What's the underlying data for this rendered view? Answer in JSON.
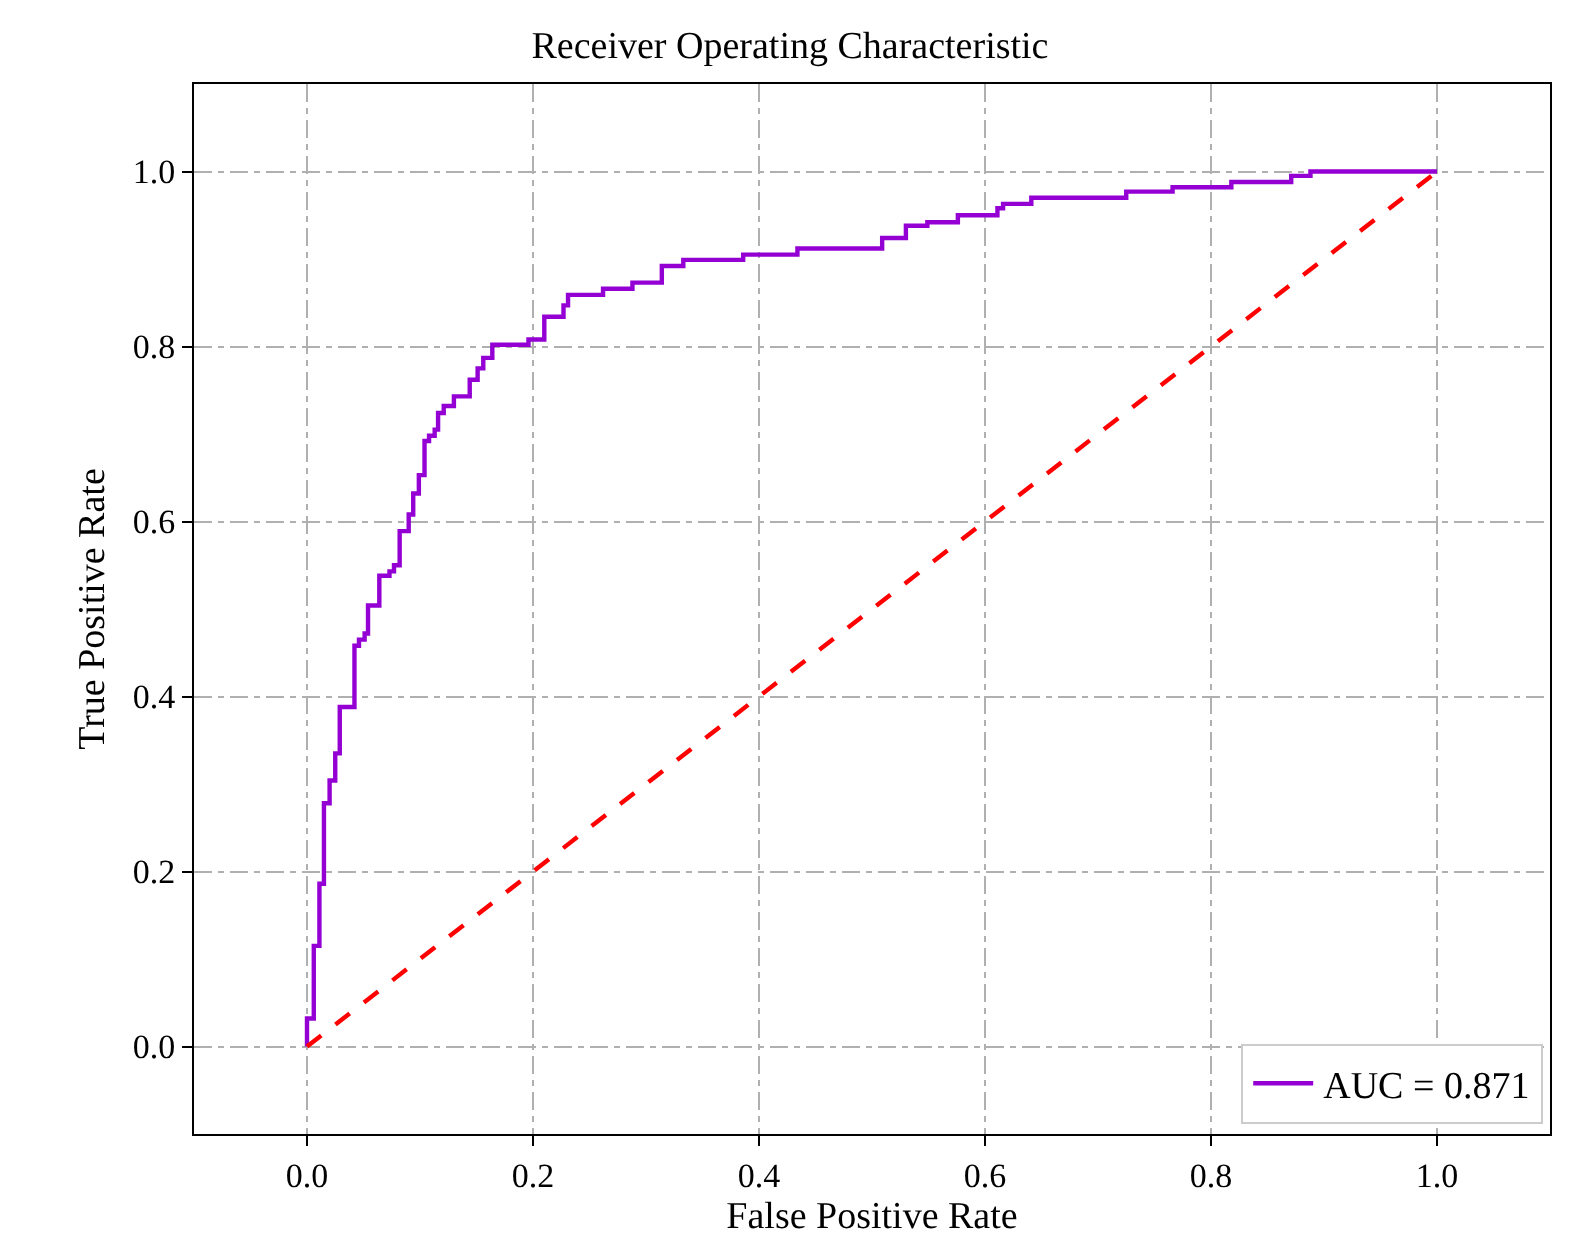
{
  "chart_data": {
    "type": "line",
    "title": "Receiver Operating Characteristic",
    "xlabel": "False Positive Rate",
    "ylabel": "True Positive Rate",
    "xlim": [
      -0.1,
      1.1
    ],
    "ylim": [
      -0.1,
      1.1
    ],
    "xticks": [
      {
        "value": 0,
        "label": "0.0"
      },
      0.2,
      0.4,
      0.6,
      0.8,
      {
        "value": 1,
        "label": "1.0"
      }
    ],
    "yticks": [
      {
        "value": 0,
        "label": "0.0"
      },
      0.2,
      0.4,
      0.6,
      0.8,
      {
        "value": 1,
        "label": "1.0"
      }
    ],
    "grid": true,
    "legend": "bottom right",
    "series": [
      {
        "name": "AUC = 0.871",
        "color": "#9400d3",
        "line_style": "solid",
        "x": [
          0,
          0,
          0.006,
          0.006,
          0.011,
          0.011,
          0.015,
          0.015,
          0.02,
          0.02,
          0.025,
          0.025,
          0.029,
          0.029,
          0.042,
          0.042,
          0.046,
          0.046,
          0.051,
          0.051,
          0.054,
          0.054,
          0.064,
          0.064,
          0.073,
          0.073,
          0.077,
          0.077,
          0.082,
          0.082,
          0.09,
          0.09,
          0.094,
          0.094,
          0.099,
          0.099,
          0.104,
          0.104,
          0.108,
          0.108,
          0.113,
          0.113,
          0.116,
          0.116,
          0.121,
          0.121,
          0.13,
          0.13,
          0.144,
          0.144,
          0.151,
          0.151,
          0.156,
          0.156,
          0.164,
          0.164,
          0.196,
          0.196,
          0.21,
          0.21,
          0.227,
          0.227,
          0.231,
          0.231,
          0.262,
          0.262,
          0.288,
          0.288,
          0.314,
          0.314,
          0.333,
          0.333,
          0.386,
          0.386,
          0.434,
          0.434,
          0.509,
          0.509,
          0.53,
          0.53,
          0.549,
          0.549,
          0.576,
          0.576,
          0.611,
          0.611,
          0.616,
          0.616,
          0.641,
          0.641,
          0.725,
          0.725,
          0.766,
          0.766,
          0.818,
          0.818,
          0.871,
          0.871,
          0.888,
          0.888,
          1.0
        ],
        "values": [
          0,
          0.032,
          0.032,
          0.115,
          0.115,
          0.186,
          0.186,
          0.278,
          0.278,
          0.304,
          0.304,
          0.335,
          0.335,
          0.388,
          0.388,
          0.458,
          0.458,
          0.465,
          0.465,
          0.472,
          0.472,
          0.504,
          0.504,
          0.538,
          0.538,
          0.543,
          0.543,
          0.55,
          0.55,
          0.589,
          0.589,
          0.608,
          0.608,
          0.632,
          0.632,
          0.653,
          0.653,
          0.692,
          0.692,
          0.698,
          0.698,
          0.705,
          0.705,
          0.724,
          0.724,
          0.732,
          0.732,
          0.743,
          0.743,
          0.762,
          0.762,
          0.775,
          0.775,
          0.787,
          0.787,
          0.802,
          0.802,
          0.808,
          0.808,
          0.834,
          0.834,
          0.847,
          0.847,
          0.859,
          0.859,
          0.866,
          0.866,
          0.873,
          0.873,
          0.892,
          0.892,
          0.899,
          0.899,
          0.905,
          0.905,
          0.912,
          0.912,
          0.924,
          0.924,
          0.938,
          0.938,
          0.942,
          0.942,
          0.95,
          0.95,
          0.958,
          0.958,
          0.963,
          0.963,
          0.97,
          0.97,
          0.977,
          0.977,
          0.982,
          0.982,
          0.988,
          0.988,
          0.995,
          0.995,
          1.0,
          1.0
        ]
      },
      {
        "color": "#ff0000",
        "line_style": "dashed",
        "x": [
          0,
          1
        ],
        "values": [
          0,
          1
        ]
      }
    ]
  }
}
